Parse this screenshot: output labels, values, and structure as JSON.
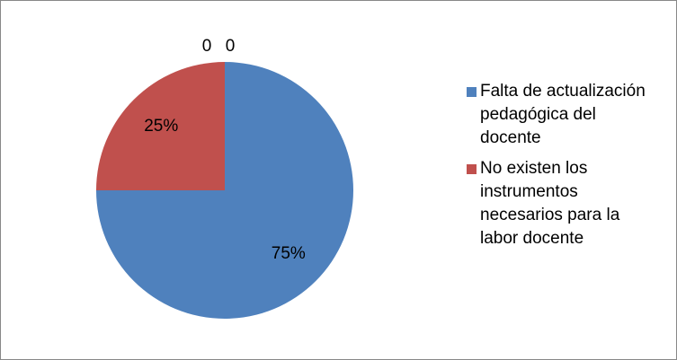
{
  "chart_data": {
    "type": "pie",
    "categories": [
      "Falta de actualización pedagógica del docente",
      "No existen los instrumentos necesarios para la labor docente",
      null,
      null
    ],
    "values": [
      75,
      25,
      0,
      0
    ],
    "value_labels": [
      "75%",
      "25%",
      "0",
      "0"
    ],
    "colors": [
      "#4f81bd",
      "#c0504d",
      "#9bbb59",
      "#8064a2"
    ],
    "legend": "right"
  }
}
